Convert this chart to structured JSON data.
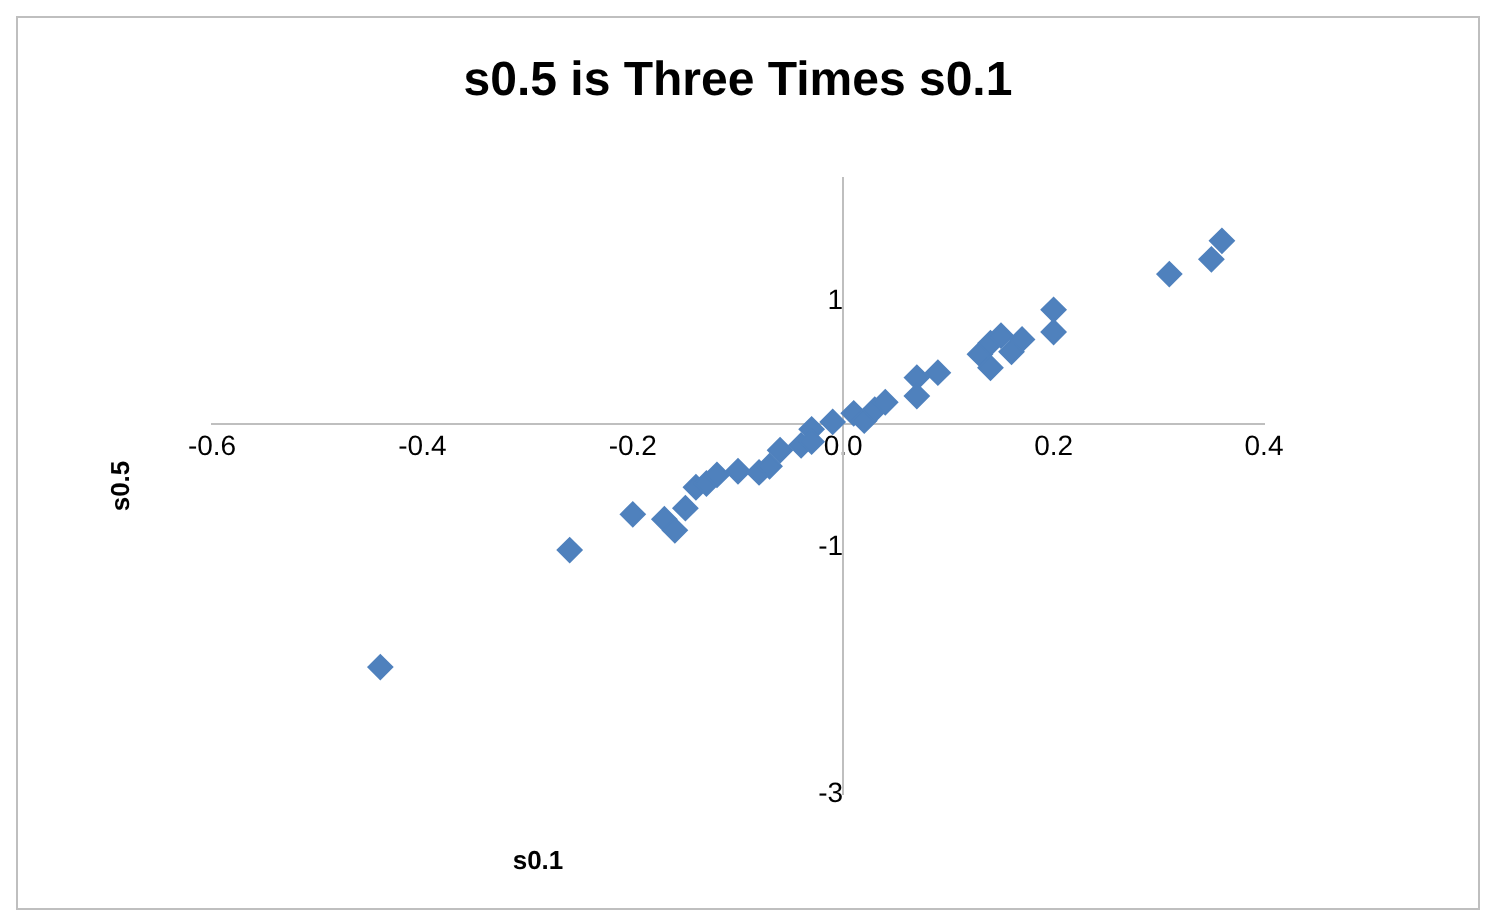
{
  "chart_data": {
    "type": "scatter",
    "title": "s0.5 is Three Times s0.1",
    "xlabel": "s0.1",
    "ylabel": "s0.5",
    "x": [
      -0.44,
      -0.26,
      -0.2,
      -0.17,
      -0.16,
      -0.15,
      -0.14,
      -0.13,
      -0.12,
      -0.1,
      -0.08,
      -0.07,
      -0.06,
      -0.04,
      -0.03,
      -0.03,
      -0.01,
      0.01,
      0.02,
      0.03,
      0.04,
      0.07,
      0.07,
      0.09,
      0.13,
      0.14,
      0.14,
      0.15,
      0.16,
      0.17,
      0.2,
      0.2,
      0.31,
      0.35,
      0.36
    ],
    "series": [
      {
        "color": "#4f81bd",
        "values": [
          -1.97,
          -1.02,
          -0.73,
          -0.77,
          -0.86,
          -0.68,
          -0.51,
          -0.48,
          -0.41,
          -0.38,
          -0.39,
          -0.34,
          -0.21,
          -0.17,
          -0.04,
          -0.14,
          0.02,
          0.09,
          0.03,
          0.12,
          0.18,
          0.38,
          0.23,
          0.42,
          0.57,
          0.66,
          0.46,
          0.72,
          0.59,
          0.69,
          0.93,
          0.75,
          1.22,
          1.34,
          1.49
        ]
      }
    ],
    "xlim": [
      -0.6,
      0.4
    ],
    "xticks": [
      -0.6,
      -0.4,
      -0.2,
      {
        "value": 0,
        "label": "0.0"
      },
      0.2,
      0.4
    ],
    "ylim": [
      -3,
      2
    ],
    "yticks": [
      -3,
      -1,
      1
    ],
    "grid": false,
    "legend": false,
    "marker": "diamond"
  }
}
